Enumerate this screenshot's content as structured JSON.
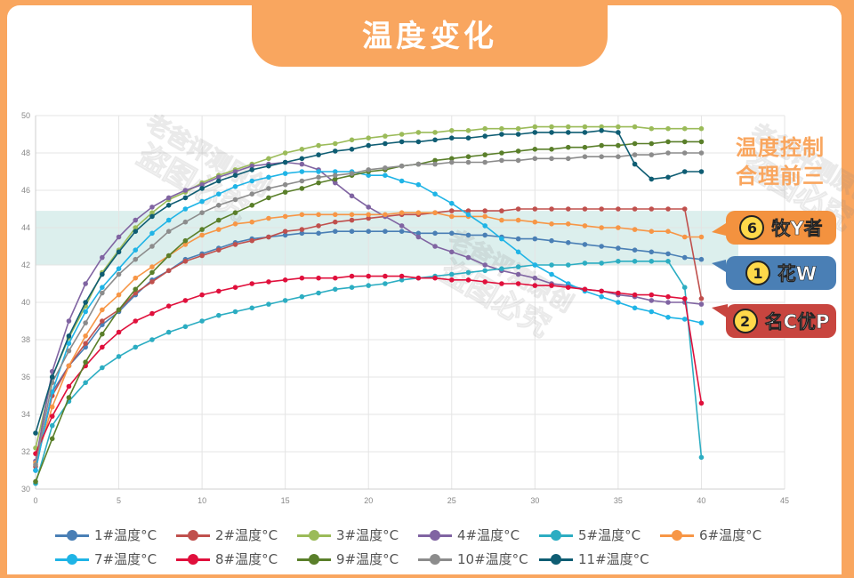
{
  "header": {
    "title": "温度变化"
  },
  "side_annotation": {
    "title_line1": "温度控制",
    "title_line2": "合理前三",
    "ranks": [
      {
        "num": "⑥",
        "num_text": "6",
        "label": "牧Y者",
        "color": "#f3923f"
      },
      {
        "num": "①",
        "num_text": "1",
        "label": "花W",
        "color": "#4a7fb5"
      },
      {
        "num": "②",
        "num_text": "2",
        "label": "名C优P",
        "color": "#c8453f"
      }
    ]
  },
  "watermark": {
    "line1": "老爸评测原创",
    "line2": "盗图必究"
  },
  "chart_data": {
    "type": "line",
    "title": "温度变化",
    "xlabel": "",
    "ylabel": "",
    "xlim": [
      0,
      45
    ],
    "ylim": [
      30,
      50
    ],
    "x_ticks": [
      0,
      5,
      10,
      15,
      20,
      25,
      30,
      35,
      40,
      45
    ],
    "y_ticks": [
      30,
      32,
      34,
      36,
      38,
      40,
      42,
      44,
      46,
      48,
      50
    ],
    "grid": true,
    "highlight_band": {
      "y_from": 42,
      "y_to": 44.9,
      "color": "#d6ecea"
    },
    "legend_position": "bottom",
    "x": [
      0,
      1,
      2,
      3,
      4,
      5,
      6,
      7,
      8,
      9,
      10,
      11,
      12,
      13,
      14,
      15,
      16,
      17,
      18,
      19,
      20,
      21,
      22,
      23,
      24,
      25,
      26,
      27,
      28,
      29,
      30,
      31,
      32,
      33,
      34,
      35,
      36,
      37,
      38,
      39,
      40
    ],
    "series": [
      {
        "name": "1#温度°C",
        "color": "#4a7fb5",
        "values": [
          31.0,
          35.2,
          36.6,
          37.6,
          38.8,
          39.5,
          40.4,
          41.2,
          41.7,
          42.3,
          42.6,
          42.9,
          43.2,
          43.4,
          43.5,
          43.6,
          43.7,
          43.7,
          43.8,
          43.8,
          43.8,
          43.8,
          43.8,
          43.7,
          43.7,
          43.7,
          43.6,
          43.6,
          43.5,
          43.4,
          43.4,
          43.3,
          43.2,
          43.1,
          43.0,
          42.9,
          42.8,
          42.7,
          42.6,
          42.4,
          42.3
        ]
      },
      {
        "name": "2#温度°C",
        "color": "#c0504d",
        "values": [
          31.2,
          35.0,
          36.6,
          37.8,
          39.0,
          39.6,
          40.5,
          41.1,
          41.7,
          42.2,
          42.5,
          42.8,
          43.1,
          43.3,
          43.5,
          43.8,
          43.9,
          44.1,
          44.3,
          44.4,
          44.5,
          44.6,
          44.7,
          44.7,
          44.8,
          44.9,
          44.9,
          44.9,
          44.9,
          45.0,
          45.0,
          45.0,
          45.0,
          45.0,
          45.0,
          45.0,
          45.0,
          45.0,
          45.0,
          45.0,
          40.2
        ]
      },
      {
        "name": "3#温度°C",
        "color": "#9bbb59",
        "values": [
          32.2,
          36.0,
          38.1,
          39.8,
          41.6,
          42.8,
          44.0,
          44.8,
          45.5,
          45.9,
          46.4,
          46.8,
          47.1,
          47.4,
          47.7,
          48.0,
          48.2,
          48.4,
          48.5,
          48.7,
          48.8,
          48.9,
          49.0,
          49.1,
          49.1,
          49.2,
          49.2,
          49.3,
          49.3,
          49.3,
          49.4,
          49.4,
          49.4,
          49.4,
          49.4,
          49.4,
          49.4,
          49.3,
          49.3,
          49.3,
          49.3
        ]
      },
      {
        "name": "4#温度°C",
        "color": "#8064a2",
        "values": [
          31.5,
          36.3,
          39.0,
          41.0,
          42.4,
          43.5,
          44.4,
          45.1,
          45.6,
          46.0,
          46.3,
          46.7,
          47.0,
          47.3,
          47.4,
          47.5,
          47.4,
          47.1,
          46.4,
          45.7,
          45.1,
          44.6,
          44.1,
          43.5,
          43.0,
          42.7,
          42.4,
          42.0,
          41.7,
          41.5,
          41.3,
          41.0,
          40.9,
          40.7,
          40.6,
          40.4,
          40.3,
          40.1,
          40.0,
          40.0,
          39.9
        ]
      },
      {
        "name": "5#温度°C",
        "color": "#2cadc2",
        "values": [
          30.3,
          33.4,
          34.7,
          35.7,
          36.5,
          37.1,
          37.6,
          38.0,
          38.4,
          38.7,
          39.0,
          39.3,
          39.5,
          39.7,
          39.9,
          40.1,
          40.3,
          40.5,
          40.7,
          40.8,
          40.9,
          41.0,
          41.2,
          41.3,
          41.4,
          41.5,
          41.6,
          41.7,
          41.8,
          41.9,
          42.0,
          42.0,
          42.0,
          42.1,
          42.1,
          42.2,
          42.2,
          42.2,
          42.2,
          40.8,
          31.7
        ]
      },
      {
        "name": "6#温度°C",
        "color": "#f79646",
        "values": [
          31.4,
          34.4,
          36.6,
          38.2,
          39.6,
          40.4,
          41.3,
          41.9,
          42.5,
          43.1,
          43.6,
          43.9,
          44.2,
          44.3,
          44.5,
          44.6,
          44.7,
          44.7,
          44.7,
          44.7,
          44.7,
          44.7,
          44.8,
          44.8,
          44.8,
          44.6,
          44.6,
          44.6,
          44.4,
          44.4,
          44.3,
          44.2,
          44.2,
          44.1,
          44.0,
          44.0,
          43.9,
          43.8,
          43.8,
          43.5,
          43.5
        ]
      },
      {
        "name": "7#温度°C",
        "color": "#1fb4e6",
        "values": [
          31.0,
          35.2,
          37.8,
          39.5,
          40.8,
          41.8,
          42.8,
          43.7,
          44.4,
          45.0,
          45.4,
          45.8,
          46.2,
          46.5,
          46.7,
          46.9,
          47.0,
          47.0,
          47.0,
          47.0,
          46.8,
          46.8,
          46.5,
          46.3,
          45.8,
          45.3,
          44.7,
          44.1,
          43.4,
          42.7,
          42.0,
          41.5,
          41.0,
          40.6,
          40.3,
          40.0,
          39.7,
          39.5,
          39.2,
          39.1,
          38.9
        ]
      },
      {
        "name": "8#温度°C",
        "color": "#e0103c",
        "values": [
          31.9,
          33.9,
          35.5,
          36.6,
          37.6,
          38.4,
          39.0,
          39.4,
          39.8,
          40.1,
          40.4,
          40.6,
          40.8,
          41.0,
          41.1,
          41.2,
          41.3,
          41.3,
          41.3,
          41.4,
          41.4,
          41.4,
          41.4,
          41.3,
          41.3,
          41.2,
          41.2,
          41.1,
          41.0,
          41.0,
          40.9,
          40.9,
          40.8,
          40.7,
          40.6,
          40.5,
          40.4,
          40.4,
          40.3,
          40.2,
          34.6
        ]
      },
      {
        "name": "9#温度°C",
        "color": "#5a7f2a",
        "values": [
          30.4,
          32.7,
          34.9,
          36.8,
          38.3,
          39.6,
          40.7,
          41.6,
          42.5,
          43.3,
          43.9,
          44.4,
          44.8,
          45.2,
          45.6,
          45.9,
          46.1,
          46.4,
          46.6,
          46.8,
          47.0,
          47.1,
          47.3,
          47.4,
          47.6,
          47.7,
          47.8,
          47.9,
          48.0,
          48.1,
          48.2,
          48.2,
          48.3,
          48.3,
          48.4,
          48.4,
          48.5,
          48.5,
          48.6,
          48.6,
          48.6
        ]
      },
      {
        "name": "10#温度°C",
        "color": "#8c8c8c",
        "values": [
          31.3,
          35.7,
          37.4,
          38.9,
          40.5,
          41.5,
          42.3,
          43.0,
          43.8,
          44.3,
          44.8,
          45.2,
          45.5,
          45.8,
          46.1,
          46.3,
          46.5,
          46.7,
          46.8,
          46.9,
          47.1,
          47.2,
          47.3,
          47.4,
          47.4,
          47.5,
          47.5,
          47.5,
          47.6,
          47.6,
          47.7,
          47.7,
          47.7,
          47.8,
          47.8,
          47.8,
          47.9,
          47.9,
          48.0,
          48.0,
          48.0
        ]
      },
      {
        "name": "11#温度°C",
        "color": "#0f5d73",
        "values": [
          33.0,
          36.0,
          38.2,
          40.0,
          41.5,
          42.7,
          43.8,
          44.6,
          45.2,
          45.6,
          46.1,
          46.5,
          46.8,
          47.1,
          47.3,
          47.5,
          47.7,
          47.9,
          48.1,
          48.2,
          48.4,
          48.5,
          48.6,
          48.6,
          48.7,
          48.8,
          48.8,
          48.9,
          49.0,
          49.0,
          49.1,
          49.1,
          49.1,
          49.1,
          49.2,
          49.1,
          47.4,
          46.6,
          46.7,
          47.0,
          47.0
        ]
      }
    ]
  }
}
